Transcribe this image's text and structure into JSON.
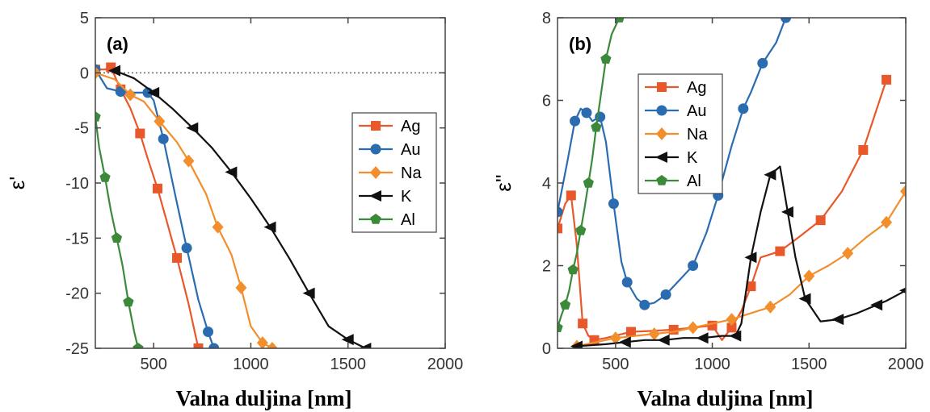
{
  "colors": {
    "Ag": "#e8582b",
    "Au": "#2b6cb0",
    "Na": "#f28f2c",
    "K": "#111111",
    "Al": "#3a8a3a"
  },
  "chart_data": [
    {
      "type": "line",
      "panel_label": "(a)",
      "xlabel": "Valna duljina [nm]",
      "ylabel": "ε'",
      "xlim": [
        200,
        2000
      ],
      "ylim": [
        -25,
        5
      ],
      "xticks": [
        500,
        1000,
        1500,
        2000
      ],
      "yticks": [
        5,
        0,
        -5,
        -10,
        -15,
        -20,
        -25
      ],
      "zero_line": true,
      "legend_position": "right",
      "series": [
        {
          "name": "Ag",
          "marker": "square",
          "x": [
            200,
            250,
            280,
            300,
            330,
            380,
            430,
            470,
            520,
            560,
            620,
            680,
            730
          ],
          "y": [
            0.3,
            0.3,
            0.5,
            -0.3,
            -1.5,
            -3.2,
            -5.5,
            -7.8,
            -10.5,
            -13.0,
            -16.8,
            -21.0,
            -25.0
          ]
        },
        {
          "name": "Au",
          "marker": "circle",
          "x": [
            200,
            260,
            330,
            400,
            470,
            500,
            550,
            610,
            670,
            730,
            780,
            810
          ],
          "y": [
            0.3,
            -1.4,
            -1.7,
            -1.8,
            -1.8,
            -2.5,
            -6.0,
            -11.0,
            -15.9,
            -20.6,
            -23.5,
            -25.0
          ]
        },
        {
          "name": "Na",
          "marker": "diamond",
          "x": [
            200,
            300,
            380,
            450,
            530,
            620,
            680,
            770,
            830,
            900,
            950,
            1000,
            1060,
            1110
          ],
          "y": [
            0.0,
            -0.6,
            -2.0,
            -2.6,
            -4.4,
            -6.3,
            -8.0,
            -11.0,
            -14.0,
            -16.5,
            -19.5,
            -23.0,
            -24.5,
            -25.0
          ]
        },
        {
          "name": "K",
          "marker": "triangle-left",
          "x": [
            300,
            400,
            500,
            600,
            700,
            800,
            900,
            1000,
            1100,
            1200,
            1300,
            1400,
            1500,
            1590
          ],
          "y": [
            0.2,
            -0.5,
            -1.8,
            -3.3,
            -5.0,
            -6.8,
            -9.0,
            -11.4,
            -14.0,
            -16.9,
            -20.0,
            -23.0,
            -24.2,
            -25.0
          ]
        },
        {
          "name": "Al",
          "marker": "pentagon",
          "x": [
            200,
            220,
            250,
            280,
            310,
            340,
            370,
            400,
            420
          ],
          "y": [
            -4.0,
            -6.8,
            -9.5,
            -12.5,
            -15.0,
            -17.5,
            -20.8,
            -23.5,
            -25.0
          ]
        }
      ]
    },
    {
      "type": "line",
      "panel_label": "(b)",
      "xlabel": "Valna duljina [nm]",
      "ylabel": "ε''",
      "xlim": [
        200,
        2000
      ],
      "ylim": [
        0,
        8
      ],
      "xticks": [
        500,
        1000,
        1500,
        2000
      ],
      "yticks": [
        8,
        6,
        4,
        2,
        0
      ],
      "legend_position": "top-left",
      "series": [
        {
          "name": "Ag",
          "marker": "square",
          "x": [
            200,
            240,
            270,
            300,
            330,
            360,
            390,
            450,
            580,
            680,
            800,
            900,
            1000,
            1050,
            1100,
            1150,
            1200,
            1250,
            1350,
            1450,
            1560,
            1670,
            1780,
            1900
          ],
          "y": [
            2.9,
            3.5,
            3.7,
            2.5,
            0.6,
            0.3,
            0.2,
            0.25,
            0.4,
            0.42,
            0.45,
            0.5,
            0.55,
            0.2,
            0.5,
            0.9,
            1.5,
            2.2,
            2.35,
            2.7,
            3.1,
            3.8,
            4.8,
            6.5
          ]
        },
        {
          "name": "Au",
          "marker": "circle",
          "x": [
            200,
            250,
            290,
            320,
            350,
            380,
            420,
            450,
            490,
            530,
            560,
            610,
            650,
            700,
            760,
            820,
            900,
            970,
            1030,
            1100,
            1160,
            1200,
            1260,
            1330,
            1380
          ],
          "y": [
            3.3,
            4.5,
            5.5,
            5.8,
            5.7,
            5.5,
            5.6,
            5.0,
            3.5,
            2.1,
            1.6,
            1.2,
            1.05,
            1.1,
            1.3,
            1.6,
            2.0,
            2.8,
            3.7,
            4.9,
            5.8,
            6.2,
            6.9,
            7.4,
            8.0
          ]
        },
        {
          "name": "Na",
          "marker": "diamond",
          "x": [
            300,
            400,
            500,
            600,
            700,
            800,
            900,
            1000,
            1100,
            1200,
            1300,
            1400,
            1500,
            1600,
            1700,
            1800,
            1900,
            2000
          ],
          "y": [
            0.05,
            0.15,
            0.25,
            0.3,
            0.35,
            0.4,
            0.5,
            0.6,
            0.7,
            0.85,
            1.0,
            1.3,
            1.75,
            2.0,
            2.3,
            2.7,
            3.05,
            3.8
          ]
        },
        {
          "name": "K",
          "marker": "triangle-left",
          "x": [
            300,
            450,
            550,
            650,
            750,
            850,
            950,
            1050,
            1120,
            1150,
            1200,
            1250,
            1300,
            1350,
            1390,
            1430,
            1480,
            1560,
            1650,
            1750,
            1850,
            1900,
            2000
          ],
          "y": [
            0.05,
            0.1,
            0.15,
            0.2,
            0.2,
            0.25,
            0.25,
            0.3,
            0.3,
            0.6,
            2.2,
            3.3,
            4.2,
            4.4,
            3.3,
            2.2,
            1.2,
            0.65,
            0.7,
            0.85,
            1.05,
            1.15,
            1.4
          ]
        },
        {
          "name": "Al",
          "marker": "pentagon",
          "x": [
            200,
            220,
            240,
            260,
            280,
            300,
            320,
            340,
            360,
            380,
            400,
            420,
            450,
            480,
            520
          ],
          "y": [
            0.5,
            0.8,
            1.05,
            1.4,
            1.9,
            2.3,
            2.85,
            3.4,
            4.0,
            4.6,
            5.35,
            6.0,
            7.0,
            7.6,
            8.0
          ]
        }
      ]
    }
  ]
}
